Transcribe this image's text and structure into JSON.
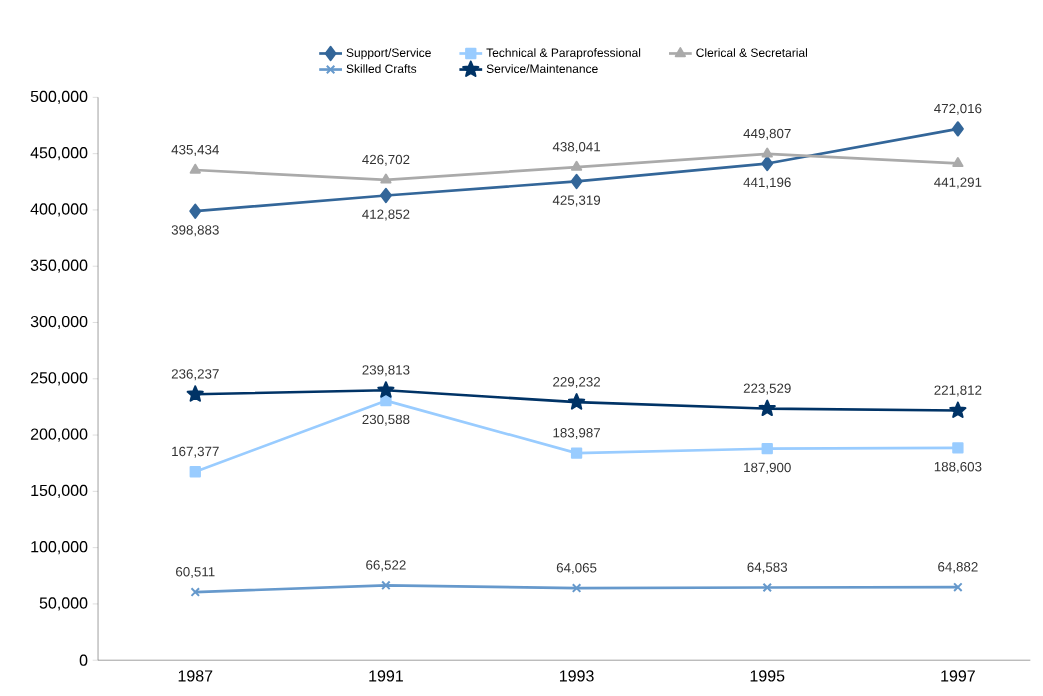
{
  "chart_data": {
    "type": "line",
    "categories": [
      "1987",
      "1991",
      "1993",
      "1995",
      "1997"
    ],
    "series": [
      {
        "name": "Support/Service",
        "color": "#336699",
        "marker": "diamond",
        "values": [
          398883,
          412852,
          425319,
          441196,
          472016
        ],
        "value_labels": [
          "398,883",
          "412,852",
          "425,319",
          "441,196",
          "472,016"
        ]
      },
      {
        "name": "Technical & Paraprofessional",
        "color": "#99ccff",
        "marker": "square",
        "values": [
          167377,
          230588,
          183987,
          187900,
          188603
        ],
        "value_labels": [
          "167,377",
          "230,588",
          "183,987",
          "187,900",
          "188,603"
        ]
      },
      {
        "name": "Clerical & Secretarial",
        "color": "#aaaaaa",
        "marker": "triangle",
        "values": [
          435434,
          426702,
          438041,
          449807,
          441291
        ],
        "value_labels": [
          "435,434",
          "426,702",
          "438,041",
          "449,807",
          "441,291"
        ]
      },
      {
        "name": "Skilled Crafts",
        "color": "#6699cc",
        "marker": "cross",
        "values": [
          60511,
          66522,
          64065,
          64583,
          64882
        ],
        "value_labels": [
          "60,511",
          "66,522",
          "64,065",
          "64,583",
          "64,882"
        ]
      },
      {
        "name": "Service/Maintenance",
        "color": "#003366",
        "marker": "star",
        "values": [
          236237,
          239813,
          229232,
          223529,
          221812
        ],
        "value_labels": [
          "236,237",
          "239,813",
          "229,232",
          "223,529",
          "221,812"
        ]
      }
    ],
    "ylim": [
      0,
      500000
    ],
    "yticks": [
      {
        "value": 0,
        "label": "0"
      },
      {
        "value": 50000,
        "label": "50,000"
      },
      {
        "value": 100000,
        "label": "100,000"
      },
      {
        "value": 150000,
        "label": "150,000"
      },
      {
        "value": 200000,
        "label": "200,000"
      },
      {
        "value": 250000,
        "label": "250,000"
      },
      {
        "value": 300000,
        "label": "300,000"
      },
      {
        "value": 350000,
        "label": "350,000"
      },
      {
        "value": 400000,
        "label": "400,000"
      },
      {
        "value": 450000,
        "label": "450,000"
      },
      {
        "value": 500000,
        "label": "500,000"
      }
    ],
    "grid": false,
    "legend": "top",
    "line_style": "solid"
  }
}
